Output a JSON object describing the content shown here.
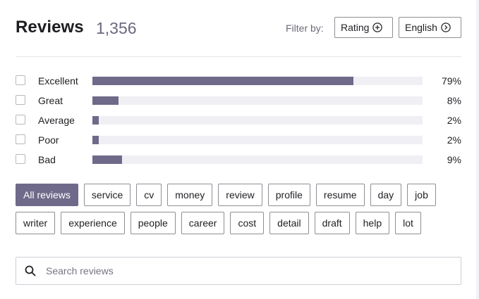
{
  "header": {
    "title": "Reviews",
    "count": "1,356",
    "filter_label": "Filter by:",
    "rating_button": "Rating",
    "language_button": "English"
  },
  "ratings": [
    {
      "label": "Excellent",
      "percent": 79,
      "percent_text": "79%",
      "checked": false
    },
    {
      "label": "Great",
      "percent": 8,
      "percent_text": "8%",
      "checked": false
    },
    {
      "label": "Average",
      "percent": 2,
      "percent_text": "2%",
      "checked": false
    },
    {
      "label": "Poor",
      "percent": 2,
      "percent_text": "2%",
      "checked": false
    },
    {
      "label": "Bad",
      "percent": 9,
      "percent_text": "9%",
      "checked": false
    }
  ],
  "tags": {
    "row1": [
      "All reviews",
      "service",
      "cv",
      "money",
      "review",
      "profile",
      "resume",
      "day",
      "job"
    ],
    "row2": [
      "writer",
      "experience",
      "people",
      "career",
      "cost",
      "detail",
      "draft",
      "help",
      "lot"
    ],
    "active": "All reviews"
  },
  "search": {
    "placeholder": "Search reviews",
    "value": ""
  },
  "colors": {
    "accent": "#6f6a89",
    "bar_track": "#f0eff4",
    "muted_text": "#6b6780"
  }
}
